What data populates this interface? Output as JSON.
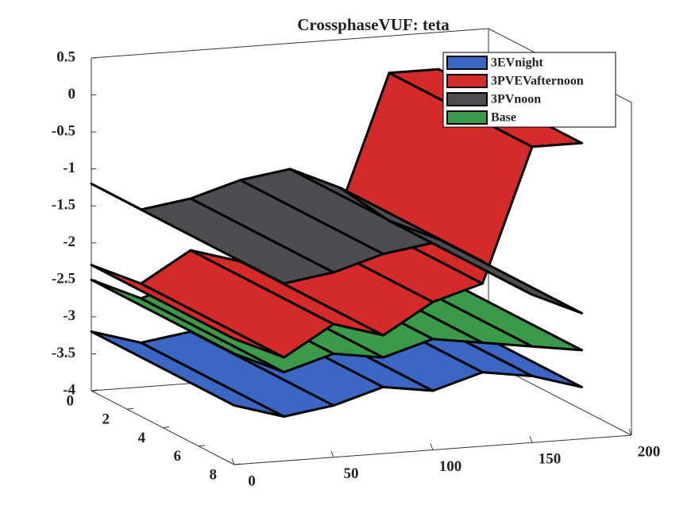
{
  "chart_data": {
    "type": "surface3d",
    "title": "CrossphaseVUF: teta",
    "x": [
      0,
      25,
      50,
      75,
      100,
      125,
      150,
      175
    ],
    "series": [
      {
        "name": "3EVnight",
        "color": "#3b66c4",
        "values": [
          -3.2,
          -3.4,
          -3.3,
          -3.1,
          -3.2,
          -3.0,
          -3.1,
          -3.3
        ]
      },
      {
        "name": "Base",
        "color": "#3a9a4a",
        "values": [
          -2.5,
          -2.8,
          -2.6,
          -2.7,
          -2.5,
          -2.6,
          -2.7,
          -2.8
        ]
      },
      {
        "name": "3PVEVafternoon",
        "color": "#d42a2a",
        "values": [
          -2.3,
          -2.6,
          -2.2,
          -2.4,
          -2.0,
          -1.8,
          0,
          0
        ]
      },
      {
        "name": "3PVnoon",
        "color": "#4d4d4f",
        "values": [
          -1.2,
          -1.6,
          -1.5,
          -1.3,
          -1.2,
          -1.5,
          -2.0,
          -2.3
        ]
      }
    ],
    "legend_order": [
      0,
      2,
      3,
      1
    ],
    "xlim": [
      0,
      200
    ],
    "xticks": [
      0,
      50,
      100,
      150,
      200
    ],
    "ylim": [
      0,
      8
    ],
    "yticks": [
      0,
      2,
      4,
      6,
      8
    ],
    "zlim": [
      -4,
      0.5
    ],
    "zticks": [
      0.5,
      0,
      -0.5,
      -1,
      -1.5,
      -2,
      -2.5,
      -3,
      -3.5,
      -4
    ],
    "legend": "upper right"
  }
}
